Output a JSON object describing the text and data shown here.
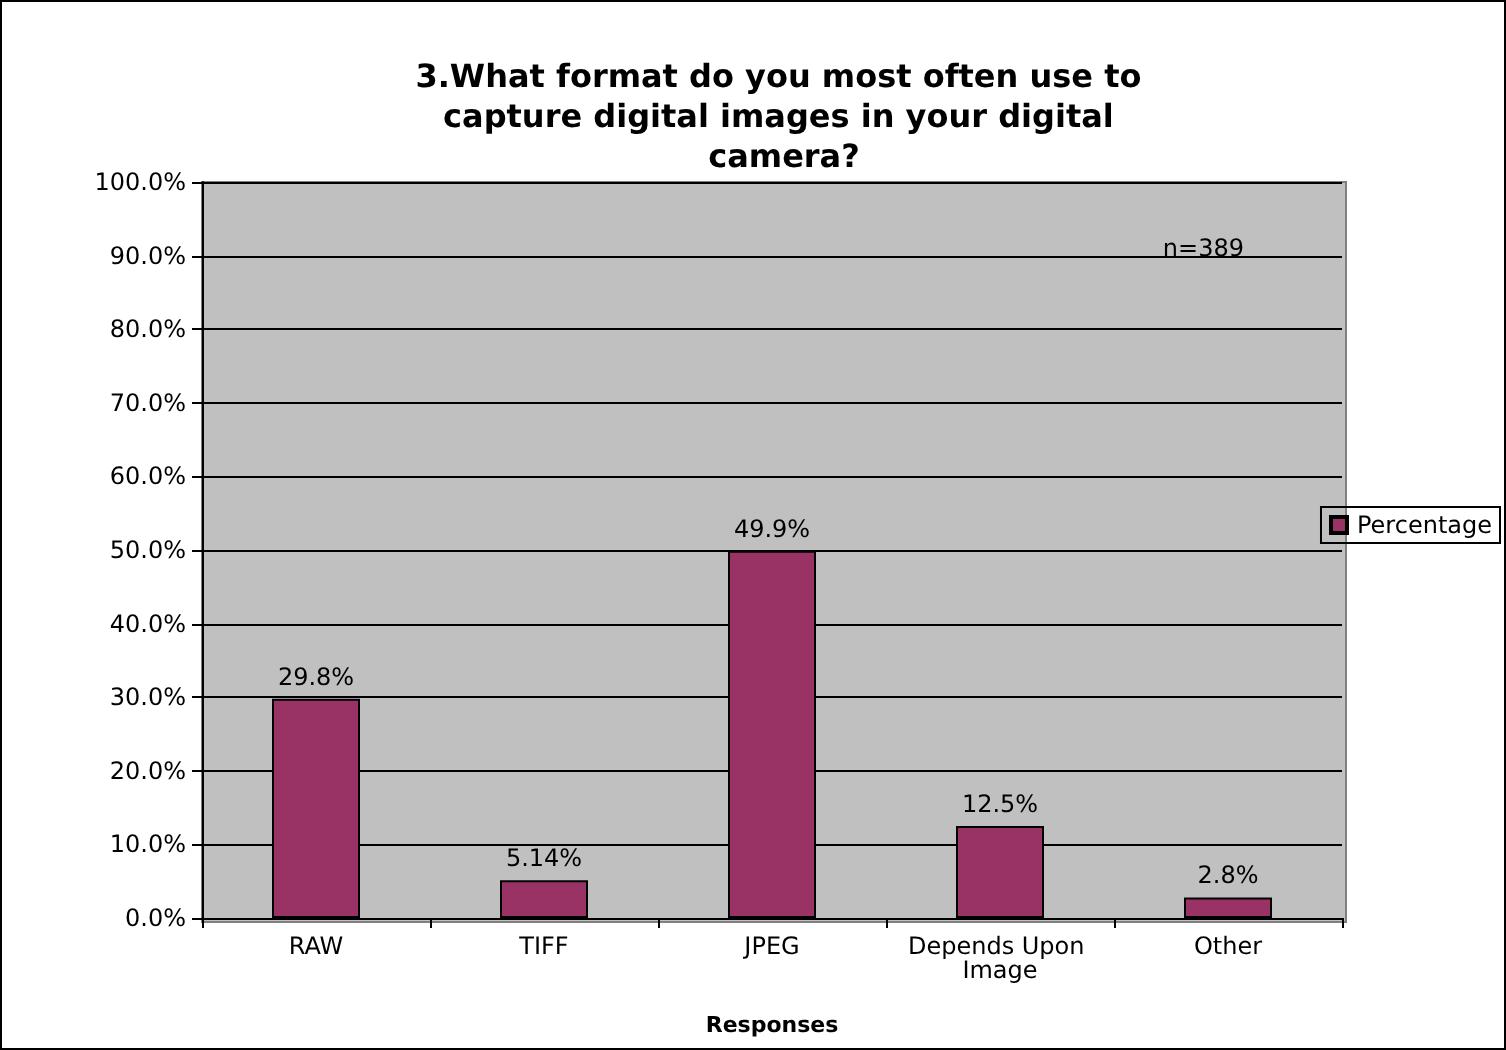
{
  "chart_data": {
    "type": "bar",
    "title": "3.What format do you most often use to capture digital images in your digital camera?",
    "xlabel": "Responses",
    "categories": [
      "RAW",
      "TIFF",
      "JPEG",
      "Depends Upon Image",
      "Other"
    ],
    "series": [
      {
        "name": "Percentage",
        "color": "#993366",
        "values": [
          29.8,
          5.14,
          49.9,
          12.5,
          2.8
        ],
        "value_labels": [
          "29.8%",
          "5.14%",
          "49.9%",
          "12.5%",
          "2.8%"
        ]
      }
    ],
    "ylim": [
      0,
      100
    ],
    "yticks": [
      {
        "value": 0,
        "label": "0.0%"
      },
      {
        "value": 10,
        "label": "10.0%"
      },
      {
        "value": 20,
        "label": "20.0%"
      },
      {
        "value": 30,
        "label": "30.0%"
      },
      {
        "value": 40,
        "label": "40.0%"
      },
      {
        "value": 50,
        "label": "50.0%"
      },
      {
        "value": 60,
        "label": "60.0%"
      },
      {
        "value": 70,
        "label": "70.0%"
      },
      {
        "value": 80,
        "label": "80.0%"
      },
      {
        "value": 90,
        "label": "90.0%"
      },
      {
        "value": 100,
        "label": "100.0%"
      }
    ],
    "grid": "y",
    "legend": "right",
    "annotations": [
      "n=389"
    ]
  }
}
